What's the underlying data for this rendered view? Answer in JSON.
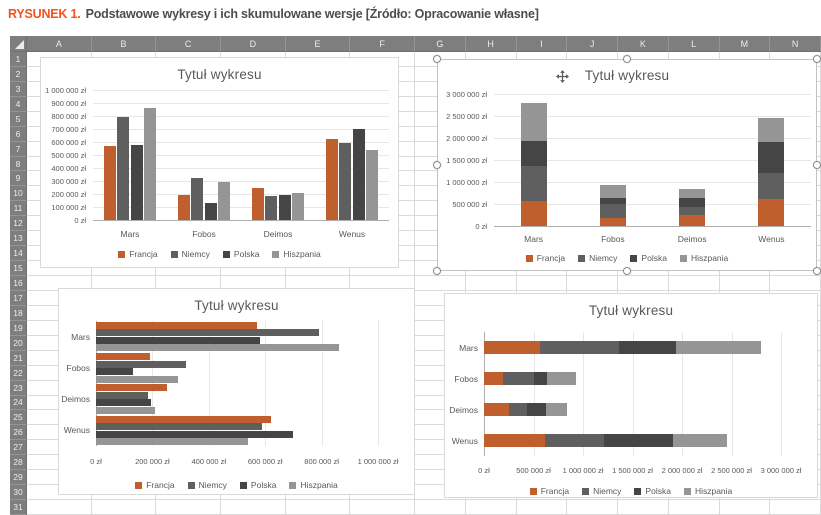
{
  "caption": {
    "label": "RYSUNEK 1.",
    "text": "Podstawowe wykresy i ich skumulowane wersje [Źródło: Opracowanie własne]"
  },
  "colors": {
    "caption_accent": "#f4511e",
    "sheet_header_bg": "#7e7e7e",
    "chart_text": "#595959"
  },
  "spreadsheet": {
    "column_headers": [
      "A",
      "B",
      "C",
      "D",
      "E",
      "F",
      "G",
      "H",
      "I",
      "J",
      "K",
      "L",
      "M",
      "N"
    ],
    "row_headers": [
      "1",
      "2",
      "3",
      "4",
      "5",
      "6",
      "7",
      "8",
      "9",
      "10",
      "11",
      "12",
      "13",
      "14",
      "15",
      "16",
      "17",
      "18",
      "19",
      "20",
      "21",
      "22",
      "23",
      "24",
      "25",
      "26",
      "27",
      "28",
      "29",
      "30",
      "31"
    ]
  },
  "chart_data": [
    {
      "type": "bar",
      "variant": "clustered-column",
      "orientation": "vertical",
      "stacked": false,
      "selected": false,
      "title": "Tytuł wykresu",
      "categories": [
        "Mars",
        "Fobos",
        "Deimos",
        "Wenus"
      ],
      "series": [
        {
          "name": "Francja",
          "color": "#c05f2e",
          "values": [
            570000,
            190000,
            250000,
            620000
          ]
        },
        {
          "name": "Niemcy",
          "color": "#5f5f5f",
          "values": [
            790000,
            320000,
            185000,
            590000
          ]
        },
        {
          "name": "Polska",
          "color": "#454545",
          "values": [
            580000,
            130000,
            195000,
            700000
          ]
        },
        {
          "name": "Hiszpania",
          "color": "#959595",
          "values": [
            860000,
            290000,
            210000,
            540000
          ]
        }
      ],
      "value_axis": {
        "min": 0,
        "max": 1000000,
        "step": 100000,
        "unit": "zł"
      },
      "legend": {
        "position": "bottom",
        "labels": [
          "Francja",
          "Niemcy",
          "Polska",
          "Hiszpania"
        ]
      }
    },
    {
      "type": "bar",
      "variant": "stacked-column",
      "orientation": "vertical",
      "stacked": true,
      "selected": true,
      "title": "Tytuł wykresu",
      "categories": [
        "Mars",
        "Fobos",
        "Deimos",
        "Wenus"
      ],
      "series": [
        {
          "name": "Francja",
          "color": "#c05f2e",
          "values": [
            570000,
            190000,
            250000,
            620000
          ]
        },
        {
          "name": "Niemcy",
          "color": "#5f5f5f",
          "values": [
            790000,
            320000,
            185000,
            590000
          ]
        },
        {
          "name": "Polska",
          "color": "#454545",
          "values": [
            580000,
            130000,
            195000,
            700000
          ]
        },
        {
          "name": "Hiszpania",
          "color": "#959595",
          "values": [
            860000,
            290000,
            210000,
            540000
          ]
        }
      ],
      "value_axis": {
        "min": 0,
        "max": 3000000,
        "step": 500000,
        "unit": "zł"
      },
      "legend": {
        "position": "bottom",
        "labels": [
          "Francja",
          "Niemcy",
          "Polska",
          "Hiszpania"
        ]
      }
    },
    {
      "type": "bar",
      "variant": "clustered-bar",
      "orientation": "horizontal",
      "stacked": false,
      "selected": false,
      "title": "Tytuł wykresu",
      "categories": [
        "Mars",
        "Fobos",
        "Deimos",
        "Wenus"
      ],
      "series": [
        {
          "name": "Francja",
          "color": "#c05f2e",
          "values": [
            570000,
            190000,
            250000,
            620000
          ]
        },
        {
          "name": "Niemcy",
          "color": "#5f5f5f",
          "values": [
            790000,
            320000,
            185000,
            590000
          ]
        },
        {
          "name": "Polska",
          "color": "#454545",
          "values": [
            580000,
            130000,
            195000,
            700000
          ]
        },
        {
          "name": "Hiszpania",
          "color": "#959595",
          "values": [
            860000,
            290000,
            210000,
            540000
          ]
        }
      ],
      "value_axis": {
        "min": 0,
        "max": 1000000,
        "step": 200000,
        "unit": "zł"
      },
      "legend": {
        "position": "bottom",
        "labels": [
          "Francja",
          "Niemcy",
          "Polska",
          "Hiszpania"
        ]
      }
    },
    {
      "type": "bar",
      "variant": "stacked-bar",
      "orientation": "horizontal",
      "stacked": true,
      "selected": false,
      "title": "Tytuł wykresu",
      "categories": [
        "Mars",
        "Fobos",
        "Deimos",
        "Wenus"
      ],
      "series": [
        {
          "name": "Francja",
          "color": "#c05f2e",
          "values": [
            570000,
            190000,
            250000,
            620000
          ]
        },
        {
          "name": "Niemcy",
          "color": "#5f5f5f",
          "values": [
            790000,
            320000,
            185000,
            590000
          ]
        },
        {
          "name": "Polska",
          "color": "#454545",
          "values": [
            580000,
            130000,
            195000,
            700000
          ]
        },
        {
          "name": "Hiszpania",
          "color": "#959595",
          "values": [
            860000,
            290000,
            210000,
            540000
          ]
        }
      ],
      "value_axis": {
        "min": 0,
        "max": 3000000,
        "step": 500000,
        "unit": "zł"
      },
      "legend": {
        "position": "bottom",
        "labels": [
          "Francja",
          "Niemcy",
          "Polska",
          "Hiszpania"
        ]
      }
    }
  ]
}
